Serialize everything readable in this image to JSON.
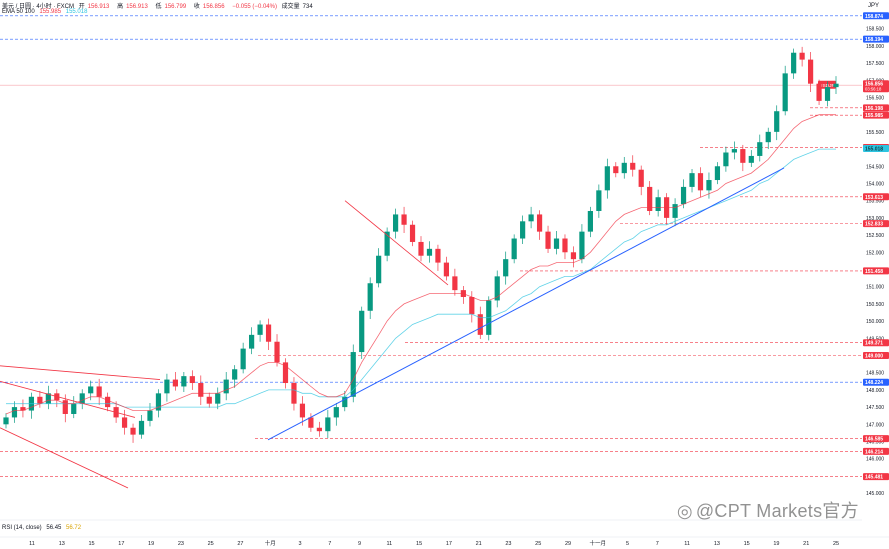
{
  "header": {
    "title": "美元 / 日圆 · 4小时 · FXCM",
    "ohlc": [
      {
        "label": "开",
        "value": "156.913",
        "tone": "dn"
      },
      {
        "label": "高",
        "value": "156.913",
        "tone": "dn"
      },
      {
        "label": "低",
        "value": "156.799",
        "tone": "dn"
      },
      {
        "label": "收",
        "value": "156.856",
        "tone": "dn"
      },
      {
        "label": "",
        "value": "−0.055 (−0.04%)",
        "tone": "dn"
      },
      {
        "label": "成交量",
        "value": "734",
        "tone": "plain"
      }
    ],
    "ema_label": "EMA 50 100",
    "ema_values": [
      "155.985",
      "155.018"
    ]
  },
  "currency": "JPY",
  "rsi": {
    "label": "RSI (14, close)",
    "values": [
      "56.45",
      "56.72"
    ]
  },
  "watermark": {
    "brand": "@CPT Markets官方"
  },
  "colors": {
    "up": "#089981",
    "down": "#f23645",
    "ema50": "#f23645",
    "ema100": "#2ec4e0",
    "blue_line": "#2962ff",
    "red_line": "#f23645"
  },
  "chart_data": {
    "type": "candlestick",
    "symbol": "USDJPY",
    "timeframe": "4H",
    "x_labels": [
      "11",
      "13",
      "15",
      "17",
      "19",
      "23",
      "25",
      "27",
      "十月",
      "3",
      "7",
      "9",
      "11",
      "15",
      "17",
      "21",
      "23",
      "25",
      "29",
      "十一月",
      "5",
      "7",
      "11",
      "13",
      "15",
      "19",
      "21",
      "25"
    ],
    "y_ticks": [
      145.0,
      145.5,
      146.0,
      146.5,
      147.0,
      147.5,
      148.0,
      148.5,
      149.0,
      149.5,
      150.0,
      150.5,
      151.0,
      151.5,
      152.0,
      152.5,
      153.0,
      153.5,
      154.0,
      154.5,
      155.0,
      155.5,
      156.0,
      156.5,
      157.0,
      157.5,
      158.0,
      158.5
    ],
    "ylim": [
      144.8,
      159.1
    ],
    "horizontal_levels": [
      {
        "value": "158.874",
        "color": "blue"
      },
      {
        "value": "158.194",
        "color": "blue"
      },
      {
        "value": "156.198",
        "color": "red"
      },
      {
        "value": "155.985",
        "color": "red"
      },
      {
        "value": "155.044",
        "color": "red"
      },
      {
        "value": "155.018",
        "color": "cyan"
      },
      {
        "value": "153.613",
        "color": "red"
      },
      {
        "value": "152.833",
        "color": "red"
      },
      {
        "value": "151.458",
        "color": "red"
      },
      {
        "value": "149.371",
        "color": "red"
      },
      {
        "value": "149.000",
        "color": "red"
      },
      {
        "value": "148.224",
        "color": "blue"
      },
      {
        "value": "146.585",
        "color": "red"
      },
      {
        "value": "146.214",
        "color": "red"
      },
      {
        "value": "145.481",
        "color": "red"
      }
    ],
    "last_price": {
      "symbol": "USDJPY",
      "value": "156.856",
      "countdown": "03:56:18"
    },
    "closes": [
      147.2,
      147.5,
      147.4,
      147.8,
      147.6,
      147.9,
      147.7,
      147.3,
      147.6,
      147.9,
      148.1,
      147.8,
      147.5,
      147.2,
      146.9,
      146.7,
      147.1,
      147.4,
      147.9,
      148.3,
      148.1,
      148.4,
      148.2,
      147.8,
      147.6,
      147.9,
      148.3,
      148.6,
      149.2,
      149.6,
      149.9,
      149.4,
      148.8,
      148.2,
      147.6,
      147.2,
      146.9,
      146.8,
      147.2,
      147.5,
      147.8,
      149.1,
      150.3,
      151.1,
      151.9,
      152.6,
      153.1,
      152.8,
      152.3,
      151.9,
      152.1,
      151.7,
      151.3,
      150.9,
      150.7,
      150.2,
      149.6,
      150.6,
      151.3,
      151.8,
      152.4,
      152.9,
      153.1,
      152.6,
      152.1,
      152.4,
      152.0,
      151.8,
      152.6,
      153.2,
      153.8,
      154.5,
      154.3,
      154.6,
      154.4,
      153.9,
      153.2,
      153.6,
      153.0,
      153.4,
      153.9,
      154.3,
      153.8,
      154.1,
      154.5,
      154.9,
      155.0,
      154.6,
      154.8,
      155.2,
      155.5,
      156.1,
      157.2,
      157.8,
      157.6,
      156.9,
      156.4,
      156.8,
      156.9
    ],
    "ema50_values": [
      147.3,
      147.4,
      147.4,
      147.5,
      147.6,
      147.7,
      147.7,
      147.6,
      147.6,
      147.7,
      147.8,
      147.8,
      147.7,
      147.6,
      147.5,
      147.4,
      147.4,
      147.4,
      147.5,
      147.6,
      147.7,
      147.8,
      147.9,
      147.9,
      147.9,
      147.9,
      148.0,
      148.1,
      148.3,
      148.5,
      148.7,
      148.8,
      148.8,
      148.7,
      148.5,
      148.3,
      148.1,
      147.9,
      147.8,
      147.8,
      147.9,
      148.3,
      148.8,
      149.2,
      149.6,
      150.0,
      150.3,
      150.5,
      150.6,
      150.7,
      150.8,
      150.8,
      150.8,
      150.8,
      150.8,
      150.7,
      150.6,
      150.6,
      150.7,
      150.9,
      151.1,
      151.3,
      151.5,
      151.6,
      151.6,
      151.7,
      151.7,
      151.7,
      151.8,
      152.0,
      152.3,
      152.6,
      152.9,
      153.1,
      153.2,
      153.3,
      153.3,
      153.3,
      153.3,
      153.3,
      153.4,
      153.5,
      153.6,
      153.7,
      153.8,
      154.0,
      154.1,
      154.2,
      154.3,
      154.5,
      154.7,
      155.0,
      155.3,
      155.6,
      155.8,
      155.9,
      156.0,
      156.0,
      156.0
    ],
    "ema100_values": [
      147.6,
      147.6,
      147.6,
      147.6,
      147.6,
      147.6,
      147.6,
      147.6,
      147.6,
      147.6,
      147.6,
      147.6,
      147.6,
      147.6,
      147.5,
      147.5,
      147.5,
      147.5,
      147.5,
      147.5,
      147.5,
      147.5,
      147.5,
      147.5,
      147.5,
      147.5,
      147.6,
      147.6,
      147.7,
      147.8,
      147.9,
      148.0,
      148.0,
      148.0,
      148.0,
      147.9,
      147.9,
      147.8,
      147.8,
      147.8,
      147.8,
      148.0,
      148.3,
      148.6,
      148.9,
      149.2,
      149.5,
      149.7,
      149.9,
      150.0,
      150.1,
      150.2,
      150.2,
      150.2,
      150.2,
      150.2,
      150.1,
      150.1,
      150.2,
      150.3,
      150.5,
      150.7,
      150.8,
      151.0,
      151.1,
      151.2,
      151.3,
      151.3,
      151.4,
      151.5,
      151.7,
      151.9,
      152.1,
      152.3,
      152.4,
      152.6,
      152.7,
      152.8,
      152.8,
      152.9,
      153.0,
      153.1,
      153.2,
      153.3,
      153.4,
      153.5,
      153.6,
      153.7,
      153.8,
      154.0,
      154.1,
      154.3,
      154.5,
      154.7,
      154.8,
      154.9,
      155.0,
      155.0,
      155.0
    ]
  }
}
